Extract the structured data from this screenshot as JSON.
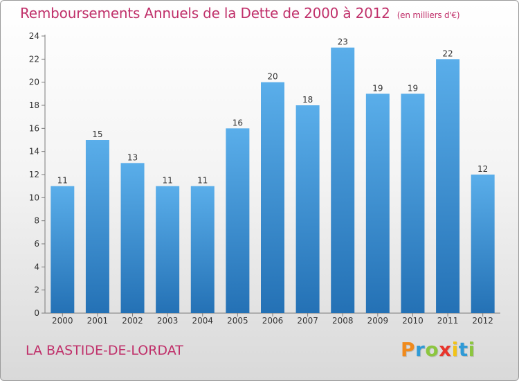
{
  "header": {
    "title": "Remboursements Annuels de la Dette de 2000 à 2012",
    "unit": "(en milliers d'€)"
  },
  "footer": {
    "commune": "LA BASTIDE-DE-LORDAT",
    "logo_letters": [
      "P",
      "r",
      "o",
      "x",
      "i",
      "t",
      "i"
    ],
    "logo_colors": [
      "#f08a1c",
      "#2f9ad6",
      "#8cc63f",
      "#e8352c",
      "#f2c318",
      "#2f9ad6",
      "#8cc63f"
    ]
  },
  "chart_data": {
    "type": "bar",
    "categories": [
      "2000",
      "2001",
      "2002",
      "2003",
      "2004",
      "2005",
      "2006",
      "2007",
      "2008",
      "2009",
      "2010",
      "2011",
      "2012"
    ],
    "values": [
      11,
      15,
      13,
      11,
      11,
      16,
      20,
      18,
      23,
      19,
      19,
      22,
      12
    ],
    "title": "Remboursements Annuels de la Dette de 2000 à 2012",
    "xlabel": "",
    "ylabel": "",
    "ylim": [
      0,
      24
    ],
    "yticks": [
      0,
      2,
      4,
      6,
      8,
      10,
      12,
      14,
      16,
      18,
      20,
      22,
      24
    ],
    "grid": false,
    "bar_color_top": "#5aaeea",
    "bar_color_bottom": "#2471b5"
  }
}
